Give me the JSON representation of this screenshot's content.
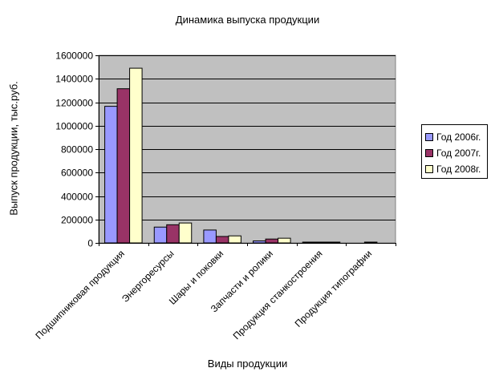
{
  "chart_data": {
    "type": "bar",
    "title": "Динамика выпуска продукции",
    "xlabel": "Виды продукции",
    "ylabel": "Выпуск продукции, тыс.руб.",
    "ylim": [
      0,
      1600000
    ],
    "yticks": [
      0,
      200000,
      400000,
      600000,
      800000,
      1000000,
      1200000,
      1400000,
      1600000
    ],
    "ytick_labels": [
      "0",
      "200000",
      "400000",
      "600000",
      "800000",
      "1000000",
      "1200000",
      "1400000",
      "1600000"
    ],
    "grid": true,
    "legend_position": "right",
    "plot_background": "#c0c0c0",
    "categories": [
      "Подшипниковая продукция",
      "Энергоресурсы",
      "Шары и поковки",
      "Запчасти и ролики",
      "Продукция станкостроения",
      "Продукция типографии"
    ],
    "series": [
      {
        "name": "Год 2006г.",
        "color": "#9999ff",
        "values": [
          1165000,
          135000,
          110000,
          17000,
          3000,
          0
        ]
      },
      {
        "name": "Год 2007г.",
        "color": "#993366",
        "values": [
          1315000,
          155000,
          55000,
          33000,
          3000,
          5000
        ]
      },
      {
        "name": "Год 2008г.",
        "color": "#ffffcc",
        "values": [
          1490000,
          170000,
          60000,
          40000,
          3000,
          0
        ]
      }
    ]
  }
}
